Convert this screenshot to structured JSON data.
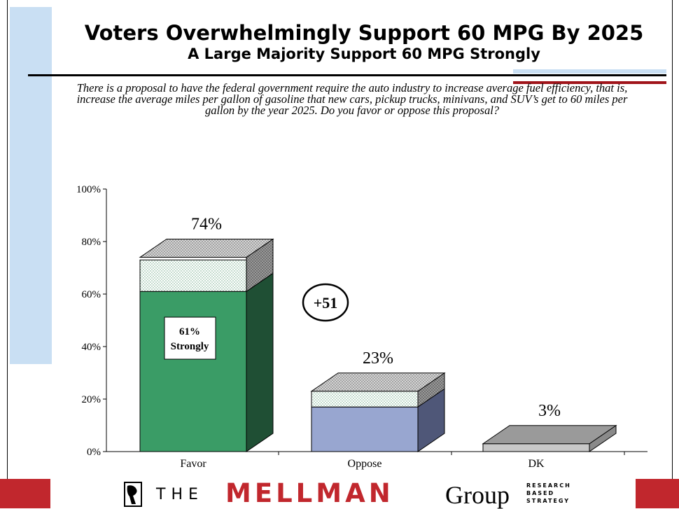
{
  "title": "Voters Overwhelmingly Support 60 MPG By 2025",
  "subtitle": "A Large Majority Support 60 MPG Strongly",
  "question": "There is a proposal to have the federal government require the auto industry to increase average fuel efficiency, that is, increase the average miles per gallon of gasoline that new cars, pickup trucks, minivans, and SUV’s get to 60 miles per gallon by the year 2025. Do you favor or oppose this proposal?",
  "chart_data": {
    "type": "bar",
    "stacked": true,
    "three_d": true,
    "categories": [
      "Favor",
      "Oppose",
      "DK"
    ],
    "series": [
      {
        "name": "Strongly",
        "values": [
          61,
          17,
          3
        ],
        "colors": [
          "#3a9c66",
          "#98a6d0",
          "#c8c8c8"
        ],
        "side_colors": [
          "#1f4f34",
          "#4f5778",
          "#8a8a8a"
        ]
      },
      {
        "values": [
          12,
          6,
          0
        ],
        "pattern": "dotted-light"
      },
      {
        "values": [
          1,
          0,
          0
        ],
        "pattern": "dotted-dark"
      }
    ],
    "totals": [
      74,
      23,
      3
    ],
    "total_labels": [
      "74%",
      "23%",
      "3%"
    ],
    "inner_label": {
      "category": "Favor",
      "line1": "61%",
      "line2": "Strongly"
    },
    "margin_badge": "+51",
    "y_ticks": [
      "0%",
      "20%",
      "40%",
      "60%",
      "80%",
      "100%"
    ],
    "ylim": [
      0,
      100
    ],
    "grid": false,
    "legend": "none"
  },
  "footer": {
    "the": "THE",
    "brand": "MELLMAN",
    "group": "Group",
    "tag_lines": [
      "RESEARCH",
      "BASED",
      "STRATEGY"
    ]
  },
  "colors": {
    "accent_red": "#c1272d",
    "rule_red": "#a0141a",
    "side_blue": "#c9dff3"
  }
}
